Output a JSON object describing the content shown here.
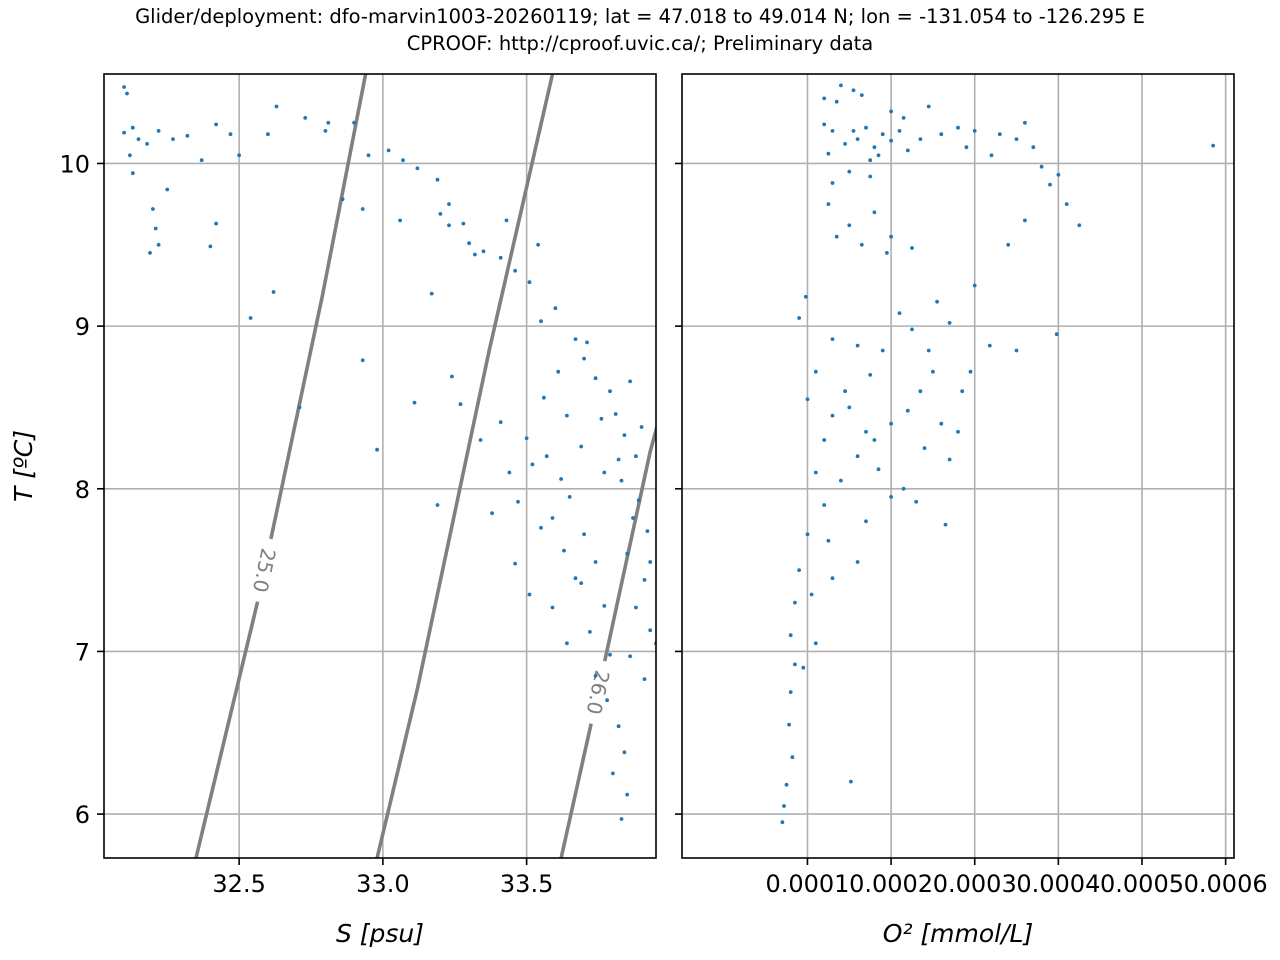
{
  "title_line1": "Glider/deployment: dfo-marvin1003-20260119; lat = 47.018 to 49.014 N; lon = -131.054 to -126.295 E",
  "title_line2": "CPROOF: http://cproof.uvic.ca/; Preliminary data",
  "colors": {
    "points": "#1f77b4",
    "contours": "#808080",
    "grid": "#b0b0b0",
    "axes": "#000000"
  },
  "chart_data": [
    {
      "type": "scatter",
      "xlabel": "S [psu]",
      "ylabel": "T [ºC]",
      "xlim": [
        32.03,
        33.95
      ],
      "ylim": [
        5.73,
        10.55
      ],
      "xticks": [
        32.5,
        33.0,
        33.5
      ],
      "xtick_labels": [
        "32.5",
        "33.0",
        "33.5"
      ],
      "yticks": [
        6,
        7,
        8,
        9,
        10
      ],
      "ytick_labels": [
        "6",
        "7",
        "8",
        "9",
        "10"
      ],
      "grid": true,
      "density_contours": [
        {
          "label": "25.0",
          "points": [
            [
              32.35,
              5.73
            ],
            [
              32.56,
              7.27
            ],
            [
              32.79,
              9.19
            ],
            [
              32.94,
              10.55
            ]
          ]
        },
        {
          "label": "",
          "points": [
            [
              32.98,
              5.73
            ],
            [
              33.12,
              6.77
            ],
            [
              33.37,
              8.85
            ],
            [
              33.59,
              10.55
            ]
          ]
        },
        {
          "label": "26.0",
          "points": [
            [
              33.62,
              5.73
            ],
            [
              33.72,
              6.52
            ],
            [
              33.93,
              8.23
            ],
            [
              34.29,
              10.55
            ]
          ]
        }
      ],
      "points": [
        [
          32.1,
          10.47
        ],
        [
          32.11,
          10.43
        ],
        [
          32.13,
          10.22
        ],
        [
          32.1,
          10.19
        ],
        [
          32.12,
          10.05
        ],
        [
          32.15,
          10.15
        ],
        [
          32.18,
          10.12
        ],
        [
          32.22,
          10.2
        ],
        [
          32.27,
          10.15
        ],
        [
          32.32,
          10.17
        ],
        [
          32.42,
          10.24
        ],
        [
          32.47,
          10.18
        ],
        [
          32.6,
          10.18
        ],
        [
          32.13,
          9.94
        ],
        [
          32.37,
          10.02
        ],
        [
          32.5,
          10.05
        ],
        [
          32.2,
          9.72
        ],
        [
          32.21,
          9.6
        ],
        [
          32.22,
          9.5
        ],
        [
          32.19,
          9.45
        ],
        [
          32.25,
          9.84
        ],
        [
          32.4,
          9.49
        ],
        [
          32.63,
          10.35
        ],
        [
          32.73,
          10.28
        ],
        [
          32.81,
          10.25
        ],
        [
          32.9,
          10.25
        ],
        [
          33.02,
          10.08
        ],
        [
          33.07,
          10.02
        ],
        [
          33.12,
          9.97
        ],
        [
          33.19,
          9.9
        ],
        [
          33.2,
          9.69
        ],
        [
          33.23,
          9.62
        ],
        [
          33.28,
          9.63
        ],
        [
          33.3,
          9.51
        ],
        [
          33.35,
          9.46
        ],
        [
          33.41,
          9.42
        ],
        [
          33.46,
          9.34
        ],
        [
          33.54,
          9.5
        ],
        [
          33.51,
          9.27
        ],
        [
          33.55,
          9.03
        ],
        [
          33.6,
          9.11
        ],
        [
          33.67,
          8.92
        ],
        [
          33.7,
          8.8
        ],
        [
          33.74,
          8.68
        ],
        [
          33.79,
          8.6
        ],
        [
          33.81,
          8.46
        ],
        [
          33.84,
          8.33
        ],
        [
          33.88,
          8.2
        ],
        [
          33.83,
          8.05
        ],
        [
          33.89,
          7.93
        ],
        [
          33.87,
          7.82
        ],
        [
          33.92,
          7.74
        ],
        [
          33.85,
          7.6
        ],
        [
          33.91,
          7.44
        ],
        [
          33.88,
          7.27
        ],
        [
          33.93,
          7.13
        ],
        [
          33.86,
          6.97
        ],
        [
          33.91,
          6.83
        ],
        [
          33.78,
          6.7
        ],
        [
          33.82,
          6.54
        ],
        [
          33.84,
          6.38
        ],
        [
          33.8,
          6.25
        ],
        [
          33.85,
          6.12
        ],
        [
          33.83,
          5.97
        ],
        [
          33.5,
          8.31
        ],
        [
          33.57,
          8.2
        ],
        [
          33.62,
          8.06
        ],
        [
          33.65,
          7.95
        ],
        [
          33.59,
          7.82
        ],
        [
          33.7,
          7.72
        ],
        [
          33.74,
          7.55
        ],
        [
          33.69,
          7.42
        ],
        [
          33.77,
          7.28
        ],
        [
          33.72,
          7.12
        ],
        [
          33.79,
          6.98
        ],
        [
          33.74,
          6.85
        ],
        [
          33.41,
          8.41
        ],
        [
          33.34,
          8.3
        ],
        [
          33.27,
          8.52
        ],
        [
          33.24,
          8.69
        ],
        [
          33.44,
          8.1
        ],
        [
          33.52,
          8.15
        ],
        [
          33.47,
          7.92
        ],
        [
          33.55,
          7.76
        ],
        [
          33.63,
          7.62
        ],
        [
          33.67,
          7.45
        ],
        [
          33.59,
          7.27
        ],
        [
          33.64,
          7.05
        ],
        [
          32.54,
          9.05
        ],
        [
          32.42,
          9.63
        ],
        [
          32.62,
          9.21
        ],
        [
          32.71,
          8.5
        ],
        [
          32.93,
          8.79
        ],
        [
          32.98,
          8.24
        ],
        [
          33.11,
          8.53
        ],
        [
          33.19,
          7.9
        ],
        [
          33.38,
          7.85
        ],
        [
          33.46,
          7.54
        ],
        [
          33.51,
          7.35
        ],
        [
          33.32,
          9.44
        ],
        [
          33.17,
          9.2
        ],
        [
          33.23,
          9.75
        ],
        [
          33.43,
          9.65
        ],
        [
          33.06,
          9.65
        ],
        [
          32.86,
          9.78
        ],
        [
          32.93,
          9.72
        ],
        [
          32.8,
          10.2
        ],
        [
          32.95,
          10.05
        ],
        [
          33.76,
          8.43
        ],
        [
          33.82,
          8.18
        ],
        [
          33.9,
          8.38
        ],
        [
          33.86,
          8.66
        ],
        [
          33.71,
          8.9
        ],
        [
          33.61,
          8.72
        ],
        [
          33.56,
          8.56
        ],
        [
          33.64,
          8.45
        ],
        [
          33.69,
          8.26
        ],
        [
          33.77,
          8.1
        ],
        [
          33.93,
          7.55
        ],
        [
          33.95,
          7.05
        ]
      ]
    },
    {
      "type": "scatter",
      "xlabel": "O² [mmol/L]",
      "ylabel": "",
      "xlim": [
        -5e-05,
        0.00061
      ],
      "ylim": [
        5.73,
        10.55
      ],
      "xticks": [
        0.0001,
        0.0002,
        0.0003,
        0.0004,
        0.0005,
        0.0006
      ],
      "xtick_labels": [
        "0.0001",
        "0.0002",
        "0.0003",
        "0.0004",
        "0.0005",
        "0.0006"
      ],
      "yticks": [
        6,
        7,
        8,
        9,
        10
      ],
      "ytick_labels": [
        "",
        "",
        "",
        "",
        ""
      ],
      "grid": true,
      "points": [
        [
          0.000145,
          10.12
        ],
        [
          0.000155,
          10.2
        ],
        [
          0.00016,
          10.15
        ],
        [
          0.00017,
          10.22
        ],
        [
          0.00018,
          10.1
        ],
        [
          0.00019,
          10.18
        ],
        [
          0.0002,
          10.14
        ],
        [
          0.00021,
          10.2
        ],
        [
          0.00022,
          10.08
        ],
        [
          0.000185,
          10.05
        ],
        [
          0.000175,
          10.02
        ],
        [
          0.00013,
          10.2
        ],
        [
          0.000125,
          10.06
        ],
        [
          0.00012,
          10.24
        ],
        [
          0.000215,
          10.28
        ],
        [
          0.000235,
          10.15
        ],
        [
          0.00026,
          10.18
        ],
        [
          0.00028,
          10.22
        ],
        [
          0.0003,
          10.2
        ],
        [
          0.00033,
          10.18
        ],
        [
          0.00035,
          10.15
        ],
        [
          0.00036,
          10.25
        ],
        [
          0.00037,
          10.1
        ],
        [
          0.00038,
          9.98
        ],
        [
          0.00039,
          9.87
        ],
        [
          0.0004,
          9.93
        ],
        [
          0.00041,
          9.75
        ],
        [
          0.000425,
          9.62
        ],
        [
          0.00036,
          9.65
        ],
        [
          0.00034,
          9.5
        ],
        [
          0.0003,
          9.25
        ],
        [
          0.00027,
          9.02
        ],
        [
          0.00025,
          8.72
        ],
        [
          0.000235,
          8.6
        ],
        [
          0.00022,
          8.48
        ],
        [
          0.0002,
          8.4
        ],
        [
          0.00018,
          8.3
        ],
        [
          0.00016,
          8.2
        ],
        [
          0.00014,
          8.05
        ],
        [
          0.00012,
          7.9
        ],
        [
          0.0001,
          7.72
        ],
        [
          9e-05,
          7.5
        ],
        [
          8.5e-05,
          7.3
        ],
        [
          8e-05,
          7.1
        ],
        [
          8.5e-05,
          6.92
        ],
        [
          8e-05,
          6.75
        ],
        [
          7.8e-05,
          6.55
        ],
        [
          8.2e-05,
          6.35
        ],
        [
          7.5e-05,
          6.18
        ],
        [
          7.2e-05,
          6.05
        ],
        [
          7e-05,
          5.95
        ],
        [
          9.5e-05,
          6.9
        ],
        [
          0.00011,
          7.05
        ],
        [
          0.000105,
          7.35
        ],
        [
          0.00013,
          7.45
        ],
        [
          0.000125,
          7.68
        ],
        [
          0.00011,
          8.1
        ],
        [
          0.00012,
          8.3
        ],
        [
          0.00013,
          8.45
        ],
        [
          0.00015,
          8.5
        ],
        [
          0.00017,
          8.35
        ],
        [
          0.000185,
          8.12
        ],
        [
          0.0002,
          7.95
        ],
        [
          0.000215,
          8.0
        ],
        [
          0.00023,
          7.92
        ],
        [
          0.00024,
          8.25
        ],
        [
          0.00026,
          8.4
        ],
        [
          0.00027,
          8.18
        ],
        [
          0.000285,
          8.6
        ],
        [
          0.00019,
          8.85
        ],
        [
          0.000175,
          8.7
        ],
        [
          0.00016,
          8.88
        ],
        [
          0.000145,
          8.6
        ],
        [
          0.00013,
          8.92
        ],
        [
          0.00011,
          8.72
        ],
        [
          0.0001,
          8.55
        ],
        [
          0.000135,
          9.55
        ],
        [
          0.00015,
          9.62
        ],
        [
          0.000165,
          9.5
        ],
        [
          0.00018,
          9.7
        ],
        [
          0.000195,
          9.45
        ],
        [
          0.000125,
          9.75
        ],
        [
          0.00013,
          9.88
        ],
        [
          0.00015,
          9.95
        ],
        [
          0.000175,
          9.92
        ],
        [
          0.0002,
          9.55
        ],
        [
          0.000225,
          9.48
        ],
        [
          0.000155,
          10.45
        ],
        [
          0.000165,
          10.42
        ],
        [
          0.000135,
          10.38
        ],
        [
          0.00012,
          10.4
        ],
        [
          0.00014,
          10.48
        ],
        [
          0.0002,
          10.32
        ],
        [
          0.000245,
          10.35
        ],
        [
          0.00029,
          10.1
        ],
        [
          0.00032,
          10.05
        ],
        [
          0.000585,
          10.11
        ],
        [
          0.000295,
          8.72
        ],
        [
          0.000318,
          8.88
        ],
        [
          0.000398,
          8.95
        ],
        [
          0.00035,
          8.85
        ],
        [
          0.00017,
          7.8
        ],
        [
          0.00016,
          7.55
        ],
        [
          0.000152,
          6.2
        ],
        [
          9e-05,
          9.05
        ],
        [
          9.8e-05,
          9.18
        ],
        [
          0.00021,
          9.08
        ],
        [
          0.000255,
          9.15
        ],
        [
          0.00028,
          8.35
        ],
        [
          0.000265,
          7.78
        ],
        [
          0.000245,
          8.85
        ],
        [
          0.000225,
          8.98
        ]
      ]
    }
  ]
}
